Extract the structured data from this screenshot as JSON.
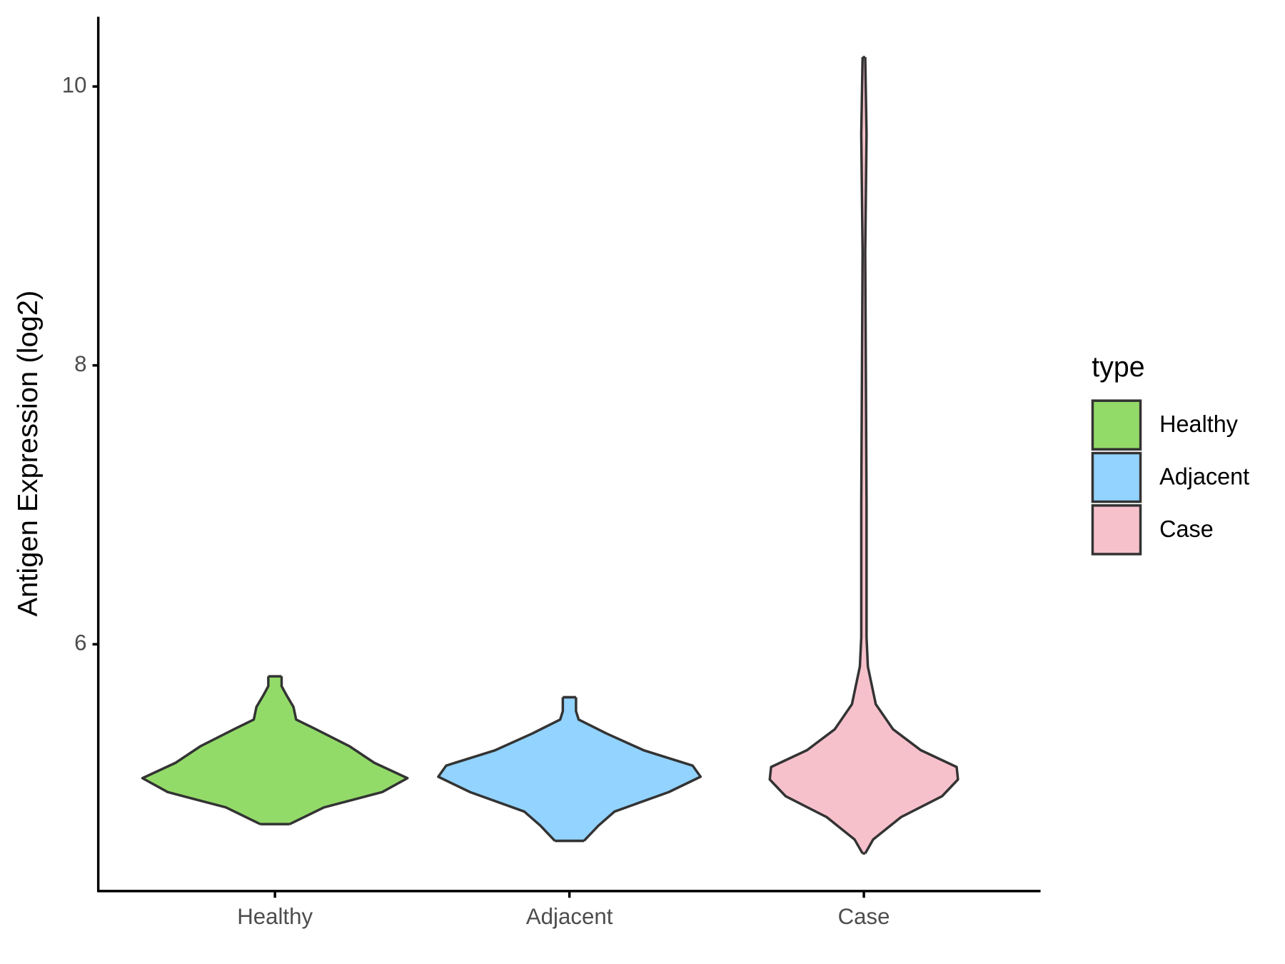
{
  "chart_data": {
    "type": "violin",
    "y_label": "Antigen Expression (log2)",
    "categories": [
      "Healthy",
      "Adjacent",
      "Case"
    ],
    "legend_title": "type",
    "legend_position": "right",
    "ylim": [
      4.23,
      10.5
    ],
    "yticks": [
      6,
      8,
      10
    ],
    "series": [
      {
        "name": "Healthy",
        "color": "#93DB69",
        "y": [
          5.77,
          5.7,
          5.63,
          5.55,
          5.46,
          5.39,
          5.27,
          5.15,
          5.04,
          4.94,
          4.83,
          4.71
        ],
        "widths": [
          0.05,
          0.05,
          0.09,
          0.14,
          0.16,
          0.31,
          0.56,
          0.75,
          1.0,
          0.81,
          0.37,
          0.11
        ]
      },
      {
        "name": "Adjacent",
        "color": "#92D3FF",
        "y": [
          5.62,
          5.52,
          5.46,
          5.36,
          5.24,
          5.13,
          5.05,
          4.94,
          4.8,
          4.7,
          4.59
        ],
        "widths": [
          0.05,
          0.05,
          0.07,
          0.28,
          0.56,
          0.93,
          0.99,
          0.75,
          0.34,
          0.22,
          0.11
        ]
      },
      {
        "name": "Case",
        "color": "#F7C1CC",
        "y": [
          10.21,
          9.66,
          8.81,
          7.01,
          6.53,
          6.05,
          5.84,
          5.57,
          5.39,
          5.24,
          5.12,
          5.03,
          4.91,
          4.76,
          4.6,
          4.5
        ],
        "widths": [
          0.01,
          0.02,
          0.01,
          0.02,
          0.02,
          0.02,
          0.03,
          0.09,
          0.22,
          0.43,
          0.7,
          0.71,
          0.59,
          0.28,
          0.07,
          0.01
        ]
      }
    ]
  }
}
